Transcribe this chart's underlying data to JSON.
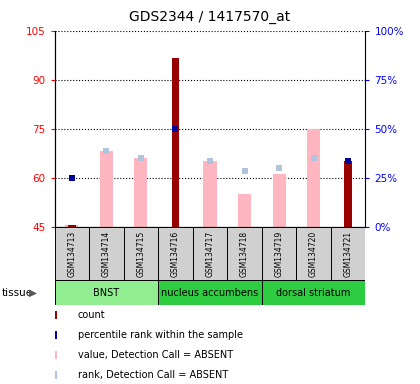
{
  "title": "GDS2344 / 1417570_at",
  "samples": [
    "GSM134713",
    "GSM134714",
    "GSM134715",
    "GSM134716",
    "GSM134717",
    "GSM134718",
    "GSM134719",
    "GSM134720",
    "GSM134721"
  ],
  "count_values": [
    45.5,
    null,
    null,
    96.5,
    null,
    null,
    null,
    null,
    65.0
  ],
  "rank_values": [
    60,
    null,
    null,
    75,
    null,
    null,
    null,
    null,
    65
  ],
  "absent_value_bars": [
    45.5,
    68,
    66,
    null,
    65,
    55,
    61,
    75,
    null
  ],
  "absent_rank_dots": [
    null,
    68,
    66,
    null,
    65,
    62,
    63,
    66,
    null
  ],
  "ylim_left": [
    45,
    105
  ],
  "ylim_right": [
    0,
    100
  ],
  "yticks_left": [
    45,
    60,
    75,
    90,
    105
  ],
  "yticks_right": [
    0,
    25,
    50,
    75,
    100
  ],
  "ytick_labels_left": [
    "45",
    "60",
    "75",
    "90",
    "105"
  ],
  "ytick_labels_right": [
    "0%",
    "25%",
    "50%",
    "75%",
    "100%"
  ],
  "tissue_groups": [
    {
      "label": "BNST",
      "start": 0,
      "end": 3,
      "color": "#90EE90"
    },
    {
      "label": "nucleus accumbens",
      "start": 3,
      "end": 6,
      "color": "#2ECC40"
    },
    {
      "label": "dorsal striatum",
      "start": 6,
      "end": 9,
      "color": "#2ECC40"
    }
  ],
  "color_count": "#990000",
  "color_rank": "#000099",
  "color_absent_value": "#FFB6C1",
  "color_absent_rank": "#B0C4DE",
  "legend_items": [
    {
      "color": "#990000",
      "label": "count"
    },
    {
      "color": "#000099",
      "label": "percentile rank within the sample"
    },
    {
      "color": "#FFB6C1",
      "label": "value, Detection Call = ABSENT"
    },
    {
      "color": "#B0C4DE",
      "label": "rank, Detection Call = ABSENT"
    }
  ]
}
